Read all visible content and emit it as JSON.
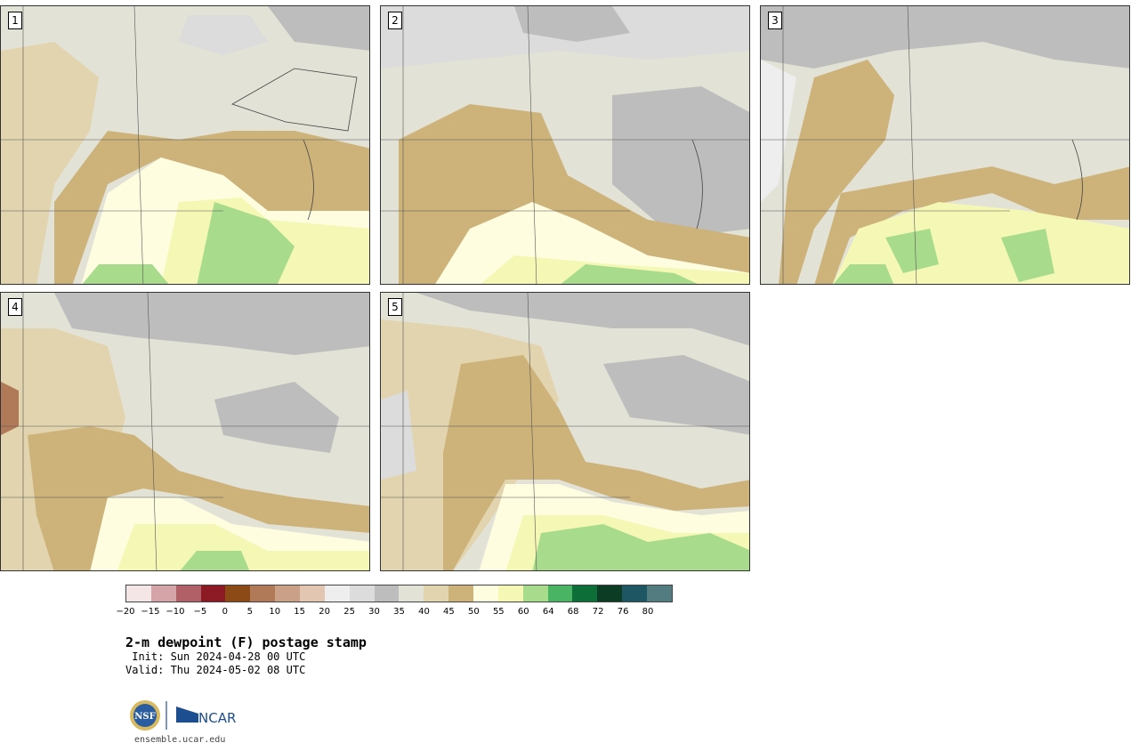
{
  "panels": [
    {
      "label": "1"
    },
    {
      "label": "2"
    },
    {
      "label": "3"
    },
    {
      "label": "4"
    },
    {
      "label": "5"
    }
  ],
  "colorbar": {
    "colors": [
      "#f4e6e6",
      "#d4a4a8",
      "#b06066",
      "#8c1a24",
      "#8c4a16",
      "#b07a58",
      "#cba088",
      "#e2c6b2",
      "#eeeeee",
      "#dcdcdc",
      "#bdbdbd",
      "#e2e2d6",
      "#e2d4ae",
      "#cdb27a",
      "#fffde0",
      "#f4f8b4",
      "#a8dc8c",
      "#48b464",
      "#0e6e38",
      "#0c3c24",
      "#1e5664",
      "#527c80"
    ],
    "ticks": [
      "−20",
      "−15",
      "−10",
      "−5",
      "0",
      "5",
      "10",
      "15",
      "20",
      "25",
      "30",
      "35",
      "40",
      "45",
      "50",
      "55",
      "60",
      "64",
      "68",
      "72",
      "76",
      "80"
    ]
  },
  "title": "2-m dewpoint (F) postage stamp",
  "init": " Init: Sun 2024-04-28 00 UTC",
  "valid": "Valid: Thu 2024-05-02 08 UTC",
  "logos": {
    "nsf": "NSF",
    "ncar": "NCAR"
  },
  "site": "ensemble.ucar.edu"
}
